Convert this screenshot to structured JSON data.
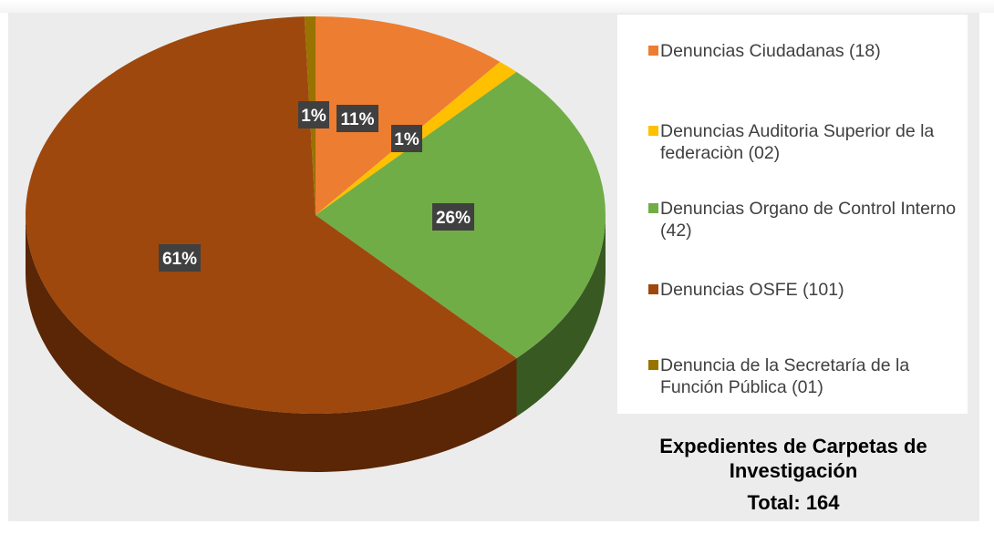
{
  "chart_data": {
    "type": "pie",
    "title": "Expedientes de Carpetas de Investigación",
    "total_label": "Total: 164",
    "slices": [
      {
        "label": "Denuncias Ciudadanas (18)",
        "value": 18,
        "percent_label": "11%",
        "color": "#ed7d31",
        "side": "#b85a1e"
      },
      {
        "label": "Denuncias Auditoria Superior de la federaciòn (02)",
        "value": 2,
        "percent_label": "1%",
        "color": "#ffc000",
        "side": "#b88a00"
      },
      {
        "label": "Denuncias Organo de Control Interno (42)",
        "value": 42,
        "percent_label": "26%",
        "color": "#70ad47",
        "side": "#385a22"
      },
      {
        "label": "Denuncias OSFE (101)",
        "value": 101,
        "percent_label": "61%",
        "color": "#9e480e",
        "side": "#5a2606"
      },
      {
        "label": "Denuncia de la Secretaría de la Función Pública (01)",
        "value": 1,
        "percent_label": "1%",
        "color": "#997300",
        "side": "#5c4500"
      }
    ]
  }
}
